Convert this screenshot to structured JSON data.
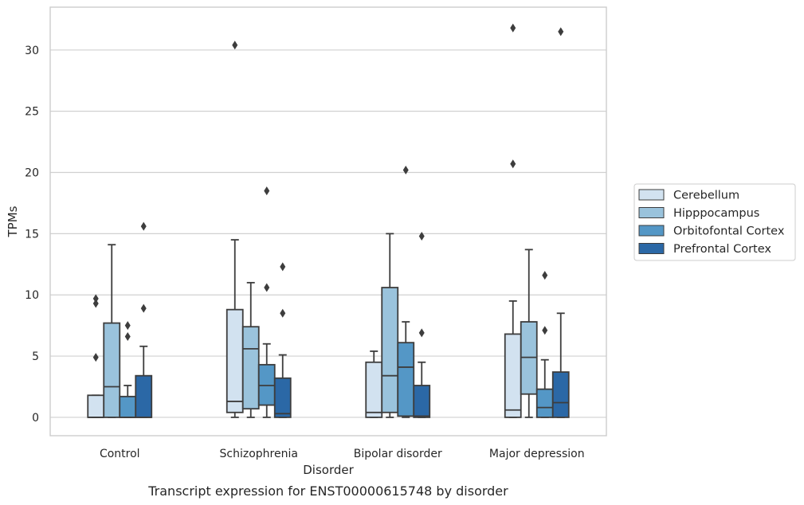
{
  "chart_data": {
    "type": "box",
    "title": "",
    "caption": "Transcript expression for ENST00000615748 by disorder",
    "xlabel": "Disorder",
    "ylabel": "TPMs",
    "ylim": [
      -1.5,
      33.5
    ],
    "yticks": [
      0,
      5,
      10,
      15,
      20,
      25,
      30
    ],
    "grid": "horizontal",
    "legend_position": "right",
    "categories": [
      "Control",
      "Schizophrenia",
      "Bipolar disorder",
      "Major depression"
    ],
    "series": [
      {
        "name": "Cerebellum",
        "color": "#d2e2f0",
        "boxes": [
          {
            "whislo": 0,
            "q1": 0,
            "med": 0,
            "q3": 1.8,
            "whishi": 1.8,
            "fliers": [
              4.9,
              9.3,
              9.7
            ]
          },
          {
            "whislo": 0,
            "q1": 0.4,
            "med": 1.3,
            "q3": 8.8,
            "whishi": 14.5,
            "fliers": [
              30.4
            ]
          },
          {
            "whislo": 0,
            "q1": 0,
            "med": 0.4,
            "q3": 4.5,
            "whishi": 5.4,
            "fliers": []
          },
          {
            "whislo": 0,
            "q1": 0,
            "med": 0.6,
            "q3": 6.8,
            "whishi": 9.5,
            "fliers": [
              20.7,
              31.8
            ]
          }
        ]
      },
      {
        "name": "Hipppocampus",
        "color": "#9ac3dc",
        "boxes": [
          {
            "whislo": 0,
            "q1": 0,
            "med": 2.5,
            "q3": 7.7,
            "whishi": 14.1,
            "fliers": []
          },
          {
            "whislo": 0,
            "q1": 0.7,
            "med": 5.6,
            "q3": 7.4,
            "whishi": 11.0,
            "fliers": []
          },
          {
            "whislo": 0,
            "q1": 0.4,
            "med": 3.4,
            "q3": 10.6,
            "whishi": 15.0,
            "fliers": []
          },
          {
            "whislo": 0,
            "q1": 1.9,
            "med": 4.9,
            "q3": 7.8,
            "whishi": 13.7,
            "fliers": []
          }
        ]
      },
      {
        "name": "Orbitofontal Cortex",
        "color": "#5497c6",
        "boxes": [
          {
            "whislo": 0,
            "q1": 0,
            "med": 0,
            "q3": 1.7,
            "whishi": 2.6,
            "fliers": [
              6.6,
              7.5
            ]
          },
          {
            "whislo": 0,
            "q1": 1.0,
            "med": 2.6,
            "q3": 4.3,
            "whishi": 6.0,
            "fliers": [
              10.6,
              18.5
            ]
          },
          {
            "whislo": 0,
            "q1": 0.1,
            "med": 4.1,
            "q3": 6.1,
            "whishi": 7.8,
            "fliers": [
              20.2
            ]
          },
          {
            "whislo": 0,
            "q1": 0,
            "med": 0.8,
            "q3": 2.3,
            "whishi": 4.7,
            "fliers": [
              7.1,
              11.6
            ]
          }
        ]
      },
      {
        "name": "Prefrontal Cortex",
        "color": "#2b68a6",
        "boxes": [
          {
            "whislo": 0,
            "q1": 0,
            "med": 0,
            "q3": 3.4,
            "whishi": 5.8,
            "fliers": [
              8.9,
              15.6
            ]
          },
          {
            "whislo": 0,
            "q1": 0,
            "med": 0.3,
            "q3": 3.2,
            "whishi": 5.1,
            "fliers": [
              8.5,
              12.3
            ]
          },
          {
            "whislo": 0,
            "q1": 0,
            "med": 0.1,
            "q3": 2.6,
            "whishi": 4.5,
            "fliers": [
              6.9,
              14.8
            ]
          },
          {
            "whislo": 0,
            "q1": 0,
            "med": 1.2,
            "q3": 3.7,
            "whishi": 8.5,
            "fliers": [
              31.5
            ]
          }
        ]
      }
    ]
  }
}
